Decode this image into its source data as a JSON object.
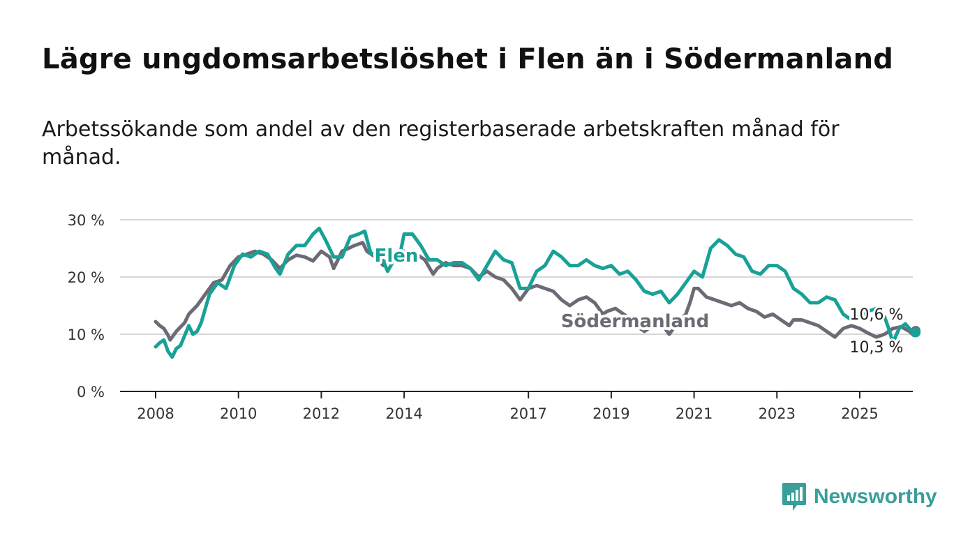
{
  "header": {
    "title": "Lägre ungdomsarbetslöshet i Flen än i Södermanland",
    "subtitle": "Arbetssökande som andel av den registerbaserade arbetskraften månad för månad."
  },
  "brand": {
    "name": "Newsworthy",
    "icon": "bar-chart-speech-bubble-icon",
    "color": "#3a9e99"
  },
  "chart_data": {
    "type": "line",
    "x_unit": "year (decimal)",
    "xlim": [
      2007.1,
      2026.4
    ],
    "ylim": [
      0,
      30
    ],
    "y_ticks": [
      {
        "value": 0,
        "label": "0 %"
      },
      {
        "value": 10,
        "label": "10 %"
      },
      {
        "value": 20,
        "label": "20 %"
      },
      {
        "value": 30,
        "label": "30 %"
      }
    ],
    "x_ticks": [
      {
        "value": 2008,
        "label": "2008"
      },
      {
        "value": 2010,
        "label": "2010"
      },
      {
        "value": 2012,
        "label": "2012"
      },
      {
        "value": 2014,
        "label": "2014"
      },
      {
        "value": 2017,
        "label": "2017"
      },
      {
        "value": 2019,
        "label": "2019"
      },
      {
        "value": 2021,
        "label": "2021"
      },
      {
        "value": 2023,
        "label": "2023"
      },
      {
        "value": 2025,
        "label": "2025"
      }
    ],
    "grid": true,
    "series": [
      {
        "name": "Södermanland",
        "color": "#6d6a75",
        "end_label": "10,6 %",
        "points": [
          [
            2008.0,
            12.2
          ],
          [
            2008.1,
            11.5
          ],
          [
            2008.2,
            11.0
          ],
          [
            2008.3,
            9.8
          ],
          [
            2008.35,
            9.0
          ],
          [
            2008.5,
            10.5
          ],
          [
            2008.7,
            12.0
          ],
          [
            2008.8,
            13.5
          ],
          [
            2009.0,
            15.0
          ],
          [
            2009.2,
            17.0
          ],
          [
            2009.4,
            19.0
          ],
          [
            2009.6,
            19.5
          ],
          [
            2009.8,
            22.0
          ],
          [
            2010.0,
            23.5
          ],
          [
            2010.2,
            24.0
          ],
          [
            2010.4,
            24.5
          ],
          [
            2010.6,
            24.0
          ],
          [
            2010.8,
            23.0
          ],
          [
            2011.0,
            21.5
          ],
          [
            2011.2,
            23.0
          ],
          [
            2011.4,
            23.8
          ],
          [
            2011.6,
            23.5
          ],
          [
            2011.8,
            22.8
          ],
          [
            2012.0,
            24.5
          ],
          [
            2012.2,
            23.5
          ],
          [
            2012.3,
            21.5
          ],
          [
            2012.5,
            24.5
          ],
          [
            2012.6,
            24.8
          ],
          [
            2012.8,
            25.5
          ],
          [
            2013.0,
            26.0
          ],
          [
            2013.1,
            24.5
          ],
          [
            2013.3,
            23.5
          ],
          [
            2013.5,
            22.0
          ],
          [
            2013.7,
            24.0
          ],
          [
            2013.9,
            24.5
          ],
          [
            2014.1,
            24.5
          ],
          [
            2014.3,
            24.0
          ],
          [
            2014.5,
            23.0
          ],
          [
            2014.7,
            20.5
          ],
          [
            2014.8,
            21.5
          ],
          [
            2015.0,
            22.5
          ],
          [
            2015.2,
            22.0
          ],
          [
            2015.4,
            22.0
          ],
          [
            2015.6,
            21.5
          ],
          [
            2015.8,
            20.0
          ],
          [
            2016.0,
            21.0
          ],
          [
            2016.2,
            20.0
          ],
          [
            2016.4,
            19.5
          ],
          [
            2016.6,
            18.0
          ],
          [
            2016.8,
            16.0
          ],
          [
            2017.0,
            18.0
          ],
          [
            2017.2,
            18.5
          ],
          [
            2017.4,
            18.0
          ],
          [
            2017.6,
            17.5
          ],
          [
            2017.8,
            16.0
          ],
          [
            2018.0,
            15.0
          ],
          [
            2018.2,
            16.0
          ],
          [
            2018.4,
            16.5
          ],
          [
            2018.6,
            15.5
          ],
          [
            2018.8,
            13.5
          ],
          [
            2018.9,
            14.0
          ],
          [
            2019.1,
            14.5
          ],
          [
            2019.3,
            13.5
          ],
          [
            2019.5,
            12.5
          ],
          [
            2019.7,
            11.0
          ],
          [
            2019.8,
            10.5
          ],
          [
            2020.0,
            11.5
          ],
          [
            2020.1,
            12.0
          ],
          [
            2020.3,
            11.0
          ],
          [
            2020.4,
            10.0
          ],
          [
            2020.6,
            12.0
          ],
          [
            2020.8,
            13.5
          ],
          [
            2020.9,
            15.5
          ],
          [
            2021.0,
            18.0
          ],
          [
            2021.1,
            18.0
          ],
          [
            2021.3,
            16.5
          ],
          [
            2021.5,
            16.0
          ],
          [
            2021.7,
            15.5
          ],
          [
            2021.9,
            15.0
          ],
          [
            2022.1,
            15.5
          ],
          [
            2022.3,
            14.5
          ],
          [
            2022.5,
            14.0
          ],
          [
            2022.7,
            13.0
          ],
          [
            2022.9,
            13.5
          ],
          [
            2023.1,
            12.5
          ],
          [
            2023.3,
            11.5
          ],
          [
            2023.4,
            12.5
          ],
          [
            2023.6,
            12.5
          ],
          [
            2023.8,
            12.0
          ],
          [
            2024.0,
            11.5
          ],
          [
            2024.2,
            10.5
          ],
          [
            2024.4,
            9.5
          ],
          [
            2024.6,
            11.0
          ],
          [
            2024.8,
            11.5
          ],
          [
            2025.0,
            11.0
          ],
          [
            2025.2,
            10.2
          ],
          [
            2025.4,
            9.5
          ],
          [
            2025.6,
            10.0
          ],
          [
            2025.8,
            11.0
          ],
          [
            2026.0,
            11.3
          ],
          [
            2026.2,
            10.5
          ],
          [
            2026.3,
            9.8
          ],
          [
            2026.35,
            10.6
          ]
        ]
      },
      {
        "name": "Flen",
        "color": "#19a197",
        "end_label": "10,3 %",
        "points": [
          [
            2008.0,
            7.8
          ],
          [
            2008.1,
            8.5
          ],
          [
            2008.2,
            9.0
          ],
          [
            2008.3,
            7.0
          ],
          [
            2008.4,
            6.0
          ],
          [
            2008.5,
            7.5
          ],
          [
            2008.6,
            8.0
          ],
          [
            2008.8,
            11.5
          ],
          [
            2008.9,
            10.0
          ],
          [
            2009.0,
            10.5
          ],
          [
            2009.1,
            12.0
          ],
          [
            2009.3,
            17.0
          ],
          [
            2009.5,
            19.0
          ],
          [
            2009.7,
            18.0
          ],
          [
            2009.9,
            22.0
          ],
          [
            2010.1,
            24.0
          ],
          [
            2010.3,
            23.5
          ],
          [
            2010.5,
            24.5
          ],
          [
            2010.7,
            24.0
          ],
          [
            2010.9,
            21.5
          ],
          [
            2011.0,
            20.5
          ],
          [
            2011.2,
            24.0
          ],
          [
            2011.4,
            25.5
          ],
          [
            2011.6,
            25.5
          ],
          [
            2011.8,
            27.5
          ],
          [
            2011.95,
            28.5
          ],
          [
            2012.1,
            26.5
          ],
          [
            2012.3,
            23.5
          ],
          [
            2012.5,
            23.5
          ],
          [
            2012.7,
            27.0
          ],
          [
            2012.9,
            27.5
          ],
          [
            2013.05,
            28.0
          ],
          [
            2013.2,
            24.0
          ],
          [
            2013.4,
            24.5
          ],
          [
            2013.6,
            21.0
          ],
          [
            2013.8,
            23.5
          ],
          [
            2013.9,
            24.0
          ],
          [
            2014.0,
            27.5
          ],
          [
            2014.2,
            27.5
          ],
          [
            2014.4,
            25.5
          ],
          [
            2014.6,
            23.0
          ],
          [
            2014.8,
            23.0
          ],
          [
            2015.0,
            22.0
          ],
          [
            2015.2,
            22.5
          ],
          [
            2015.4,
            22.5
          ],
          [
            2015.6,
            21.5
          ],
          [
            2015.8,
            19.5
          ],
          [
            2016.0,
            22.0
          ],
          [
            2016.2,
            24.5
          ],
          [
            2016.4,
            23.0
          ],
          [
            2016.6,
            22.5
          ],
          [
            2016.8,
            18.0
          ],
          [
            2017.0,
            18.0
          ],
          [
            2017.2,
            21.0
          ],
          [
            2017.4,
            22.0
          ],
          [
            2017.6,
            24.5
          ],
          [
            2017.8,
            23.5
          ],
          [
            2018.0,
            22.0
          ],
          [
            2018.2,
            22.0
          ],
          [
            2018.4,
            23.0
          ],
          [
            2018.6,
            22.0
          ],
          [
            2018.8,
            21.5
          ],
          [
            2019.0,
            22.0
          ],
          [
            2019.2,
            20.5
          ],
          [
            2019.4,
            21.0
          ],
          [
            2019.6,
            19.5
          ],
          [
            2019.8,
            17.5
          ],
          [
            2020.0,
            17.0
          ],
          [
            2020.2,
            17.5
          ],
          [
            2020.4,
            15.5
          ],
          [
            2020.6,
            17.0
          ],
          [
            2020.8,
            19.0
          ],
          [
            2021.0,
            21.0
          ],
          [
            2021.2,
            20.0
          ],
          [
            2021.4,
            25.0
          ],
          [
            2021.6,
            26.5
          ],
          [
            2021.8,
            25.5
          ],
          [
            2022.0,
            24.0
          ],
          [
            2022.2,
            23.5
          ],
          [
            2022.4,
            21.0
          ],
          [
            2022.6,
            20.5
          ],
          [
            2022.8,
            22.0
          ],
          [
            2023.0,
            22.0
          ],
          [
            2023.2,
            21.0
          ],
          [
            2023.4,
            18.0
          ],
          [
            2023.6,
            17.0
          ],
          [
            2023.8,
            15.5
          ],
          [
            2024.0,
            15.5
          ],
          [
            2024.2,
            16.5
          ],
          [
            2024.4,
            16.0
          ],
          [
            2024.6,
            13.5
          ],
          [
            2024.8,
            12.5
          ],
          [
            2025.0,
            13.0
          ],
          [
            2025.2,
            14.0
          ],
          [
            2025.4,
            14.5
          ],
          [
            2025.6,
            13.0
          ],
          [
            2025.7,
            11.0
          ],
          [
            2025.8,
            8.5
          ],
          [
            2025.95,
            11.0
          ],
          [
            2026.1,
            11.8
          ],
          [
            2026.2,
            11.0
          ],
          [
            2026.3,
            10.0
          ],
          [
            2026.35,
            10.3
          ]
        ]
      }
    ]
  }
}
